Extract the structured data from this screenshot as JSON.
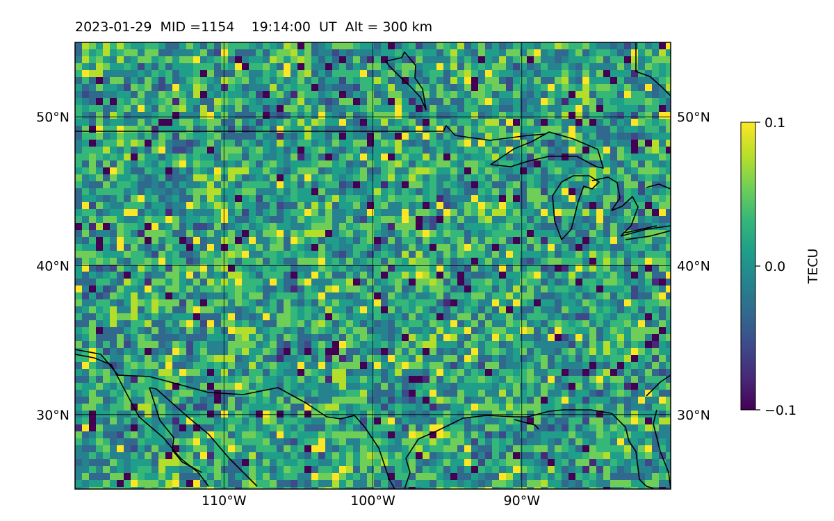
{
  "title": "2023-01-29  MID =1154    19:14:00  UT  Alt = 300 km",
  "chart_data": {
    "type": "heatmap",
    "title": "2023-01-29  MID =1154    19:14:00  UT  Alt = 300 km",
    "lon_range": [
      -120,
      -80
    ],
    "lat_range": [
      25,
      55
    ],
    "x_ticks": [
      {
        "value": -110,
        "label": "110°W"
      },
      {
        "value": -100,
        "label": "100°W"
      },
      {
        "value": -90,
        "label": "90°W"
      }
    ],
    "y_ticks": [
      {
        "value": 30,
        "label": "30°N"
      },
      {
        "value": 40,
        "label": "40°N"
      },
      {
        "value": 50,
        "label": "50°N"
      }
    ],
    "gridlines": true,
    "colorbar": {
      "label": "TECU",
      "colormap": "viridis",
      "range": [
        -0.1,
        0.1
      ],
      "ticks": [
        {
          "value": 0.1,
          "label": "0.1"
        },
        {
          "value": 0.0,
          "label": "0.0"
        },
        {
          "value": -0.1,
          "label": "−0.1"
        }
      ]
    },
    "values": "dense noisy gridded TEC perturbation field, mostly near 0.0 TECU with scattered ±0.1 extremes"
  },
  "colors": {
    "viridis": [
      "#440154",
      "#482878",
      "#3e4989",
      "#31688e",
      "#26828e",
      "#1f9e89",
      "#35b779",
      "#6ece58",
      "#b5de2b",
      "#fde725"
    ]
  }
}
